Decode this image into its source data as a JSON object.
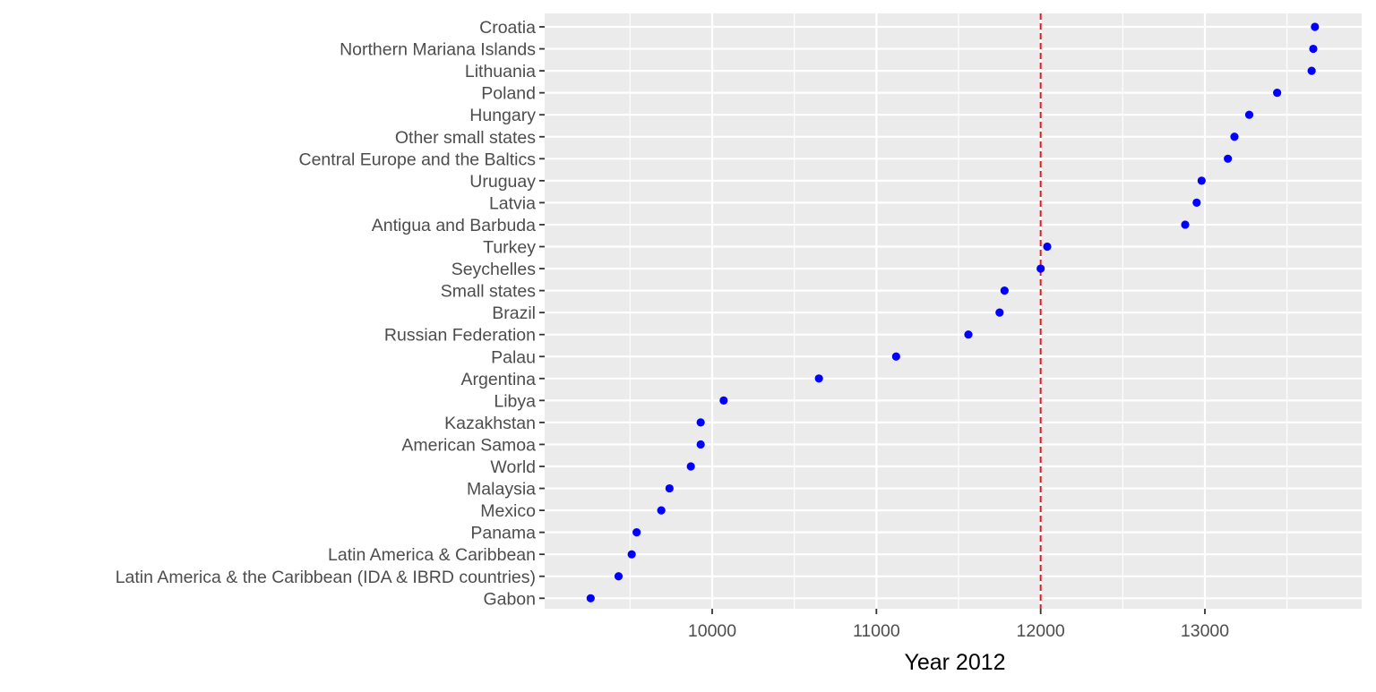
{
  "chart_data": {
    "type": "scatter",
    "title": "",
    "xlabel": "Year 2012",
    "ylabel": "",
    "xlim": [
      9000,
      13800
    ],
    "x_ticks": [
      10000,
      11000,
      12000,
      13000
    ],
    "grid": true,
    "reference_line": {
      "x": 12000,
      "style": "dashed",
      "color": "#e31a1c"
    },
    "point_color": "#0000ff",
    "panel_background": "#ebebeb",
    "categories": [
      "Gabon",
      "Latin America & the Caribbean (IDA & IBRD countries)",
      "Latin America & Caribbean",
      "Panama",
      "Mexico",
      "Malaysia",
      "World",
      "American Samoa",
      "Kazakhstan",
      "Libya",
      "Argentina",
      "Palau",
      "Russian Federation",
      "Brazil",
      "Small states",
      "Seychelles",
      "Turkey",
      "Antigua and Barbuda",
      "Latvia",
      "Uruguay",
      "Central Europe and the Baltics",
      "Other small states",
      "Hungary",
      "Poland",
      "Lithuania",
      "Northern Mariana Islands",
      "Croatia"
    ],
    "values": [
      9260,
      9430,
      9510,
      9540,
      9690,
      9740,
      9870,
      9930,
      9930,
      10070,
      10650,
      11120,
      11560,
      11750,
      11780,
      12000,
      12040,
      12880,
      12950,
      12980,
      13140,
      13180,
      13270,
      13440,
      13650,
      13660,
      13670
    ]
  }
}
